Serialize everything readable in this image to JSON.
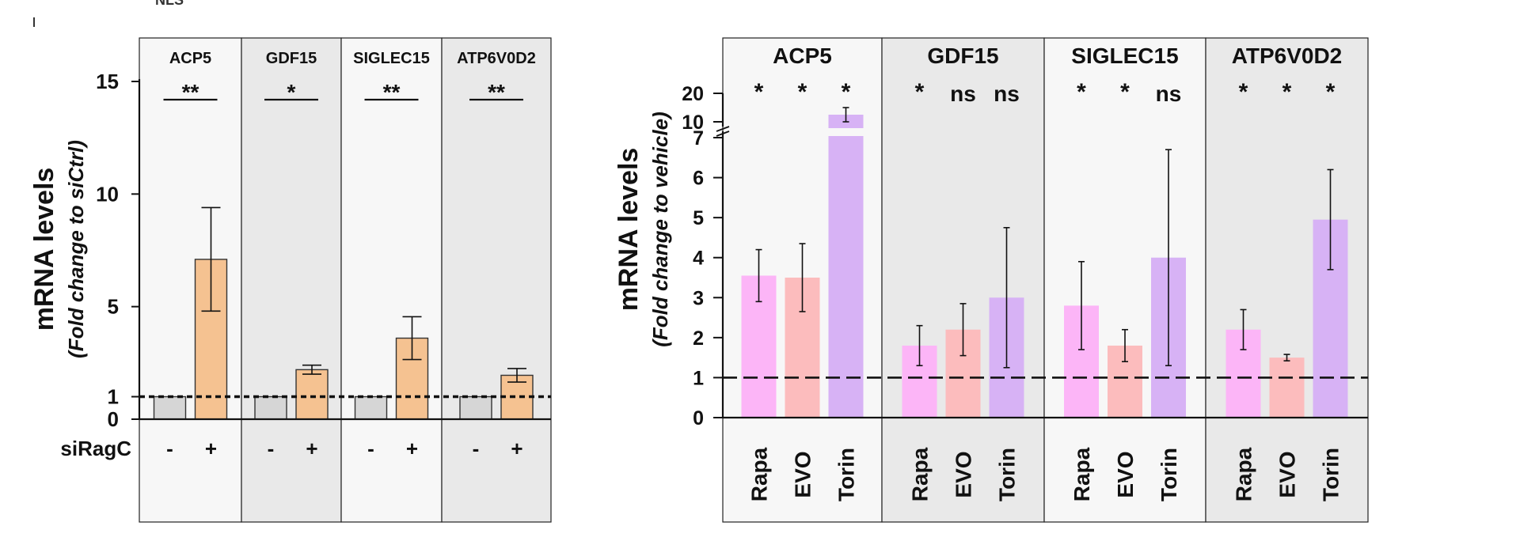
{
  "top_fragment": "NLS",
  "chart_data": [
    {
      "type": "bar",
      "title": "",
      "ylabel": "mRNA levels",
      "ylabel_sub": "(Fold change to siCtrl)",
      "xlabel": "siRagC",
      "ylim": [
        0,
        15
      ],
      "yticks": [
        0,
        1,
        5,
        10,
        15
      ],
      "reference_line": 1,
      "panels": [
        "ACP5",
        "GDF15",
        "SIGLEC15",
        "ATP6V0D2"
      ],
      "categories": [
        "-",
        "+"
      ],
      "series": [
        {
          "name": "ACP5",
          "values": [
            1.0,
            7.1
          ],
          "errors": [
            0,
            2.3
          ],
          "significance": "**"
        },
        {
          "name": "GDF15",
          "values": [
            1.0,
            2.2
          ],
          "errors": [
            0,
            0.2
          ],
          "significance": "*"
        },
        {
          "name": "SIGLEC15",
          "values": [
            1.0,
            3.6
          ],
          "errors": [
            0,
            0.95
          ],
          "significance": "**"
        },
        {
          "name": "ATP6V0D2",
          "values": [
            1.0,
            1.95
          ],
          "errors": [
            0,
            0.3
          ],
          "significance": "**"
        }
      ],
      "colors": {
        "control": "#d6d6d6",
        "treated": "#f5c291",
        "panel_light": "#f7f7f7",
        "panel_dark": "#e9e9e9"
      }
    },
    {
      "type": "bar",
      "title": "",
      "ylabel": "mRNA levels",
      "ylabel_sub": "(Fold change to vehicle)",
      "ylim": [
        0,
        20
      ],
      "axis_break": [
        7,
        10
      ],
      "yticks_lower": [
        0,
        1,
        2,
        3,
        4,
        5,
        6,
        7
      ],
      "yticks_upper": [
        10,
        20
      ],
      "reference_line": 1,
      "panels": [
        "ACP5",
        "GDF15",
        "SIGLEC15",
        "ATP6V0D2"
      ],
      "categories": [
        "Rapa",
        "EVO",
        "Torin"
      ],
      "series": [
        {
          "name": "ACP5",
          "values": [
            3.55,
            3.5,
            12.5
          ],
          "errors": [
            0.65,
            0.85,
            2.5
          ],
          "significance": [
            "*",
            "*",
            "*"
          ]
        },
        {
          "name": "GDF15",
          "values": [
            1.8,
            2.2,
            3.0
          ],
          "errors": [
            0.5,
            0.65,
            1.75
          ],
          "significance": [
            "*",
            "ns",
            "ns"
          ]
        },
        {
          "name": "SIGLEC15",
          "values": [
            2.8,
            1.8,
            4.0
          ],
          "errors": [
            1.1,
            0.4,
            2.7
          ],
          "significance": [
            "*",
            "*",
            "ns"
          ]
        },
        {
          "name": "ATP6V0D2",
          "values": [
            2.2,
            1.5,
            4.95
          ],
          "errors": [
            0.5,
            0.08,
            1.25
          ],
          "significance": [
            "*",
            "*",
            "*"
          ]
        }
      ],
      "colors": {
        "Rapa": "#fcb5f7",
        "EVO": "#fcbcbd",
        "Torin": "#d7b2f5",
        "panel_light": "#f7f7f7",
        "panel_dark": "#e9e9e9"
      }
    }
  ]
}
